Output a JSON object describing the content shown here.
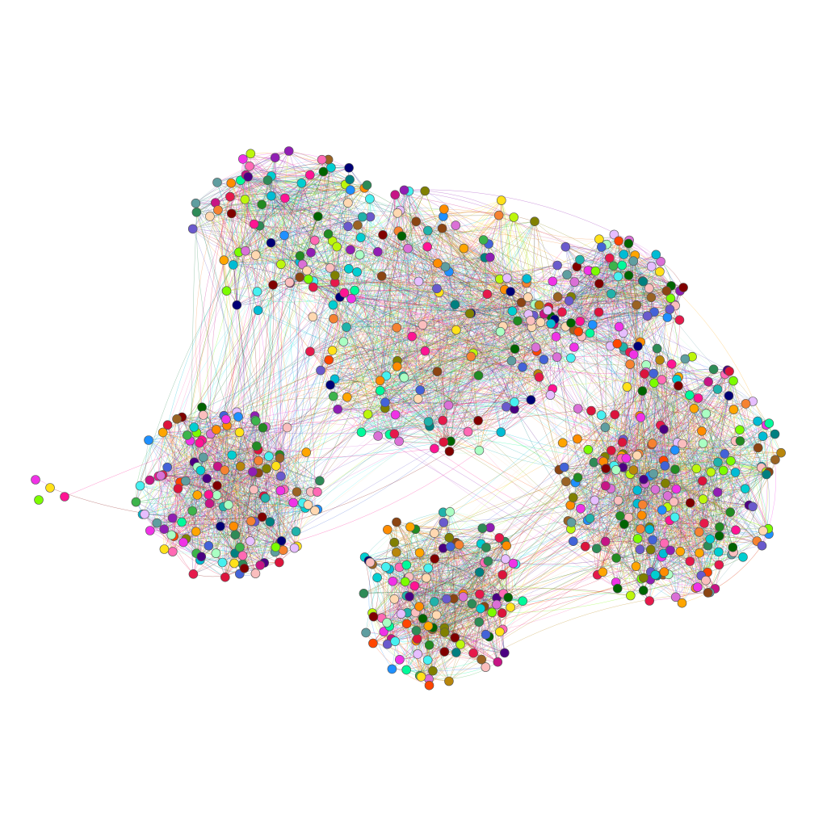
{
  "graph": {
    "type": "network",
    "layout": "force-directed",
    "background": "#ffffff",
    "node_outline_color": "#555555",
    "node_palette": [
      "#e6194b",
      "#3cb44b",
      "#ffe119",
      "#4363d8",
      "#f58231",
      "#911eb4",
      "#46f0f0",
      "#f032e6",
      "#bcf60c",
      "#fabebe",
      "#008080",
      "#e6beff",
      "#9a6324",
      "#800000",
      "#aaffc3",
      "#808000",
      "#ffd8b1",
      "#000075",
      "#00bcd4",
      "#ff69b4",
      "#006400",
      "#1e90ff",
      "#ff8c00",
      "#8b4513",
      "#2e8b57",
      "#c71585",
      "#00ced1",
      "#7cfc00",
      "#dc143c",
      "#4b0082",
      "#ffa500",
      "#20b2aa",
      "#ff1493",
      "#228b22",
      "#b8860b",
      "#6a5acd",
      "#00fa9a",
      "#ff4500",
      "#da70d6",
      "#5f9ea0"
    ],
    "clusters": [
      {
        "id": "cluster-top-left",
        "node_count": 75
      },
      {
        "id": "cluster-top-center",
        "node_count": 140
      },
      {
        "id": "cluster-top-right",
        "node_count": 75
      },
      {
        "id": "cluster-right",
        "node_count": 210
      },
      {
        "id": "cluster-left",
        "node_count": 130
      },
      {
        "id": "cluster-bottom",
        "node_count": 120
      },
      {
        "id": "cluster-isolated",
        "node_count": 4
      }
    ],
    "inter_cluster_links": [
      [
        "cluster-top-left",
        "cluster-top-center"
      ],
      [
        "cluster-top-center",
        "cluster-top-right"
      ],
      [
        "cluster-top-right",
        "cluster-right"
      ],
      [
        "cluster-top-center",
        "cluster-right"
      ],
      [
        "cluster-top-left",
        "cluster-left"
      ],
      [
        "cluster-top-center",
        "cluster-left"
      ],
      [
        "cluster-bottom",
        "cluster-right"
      ],
      [
        "cluster-left",
        "cluster-isolated"
      ]
    ]
  }
}
